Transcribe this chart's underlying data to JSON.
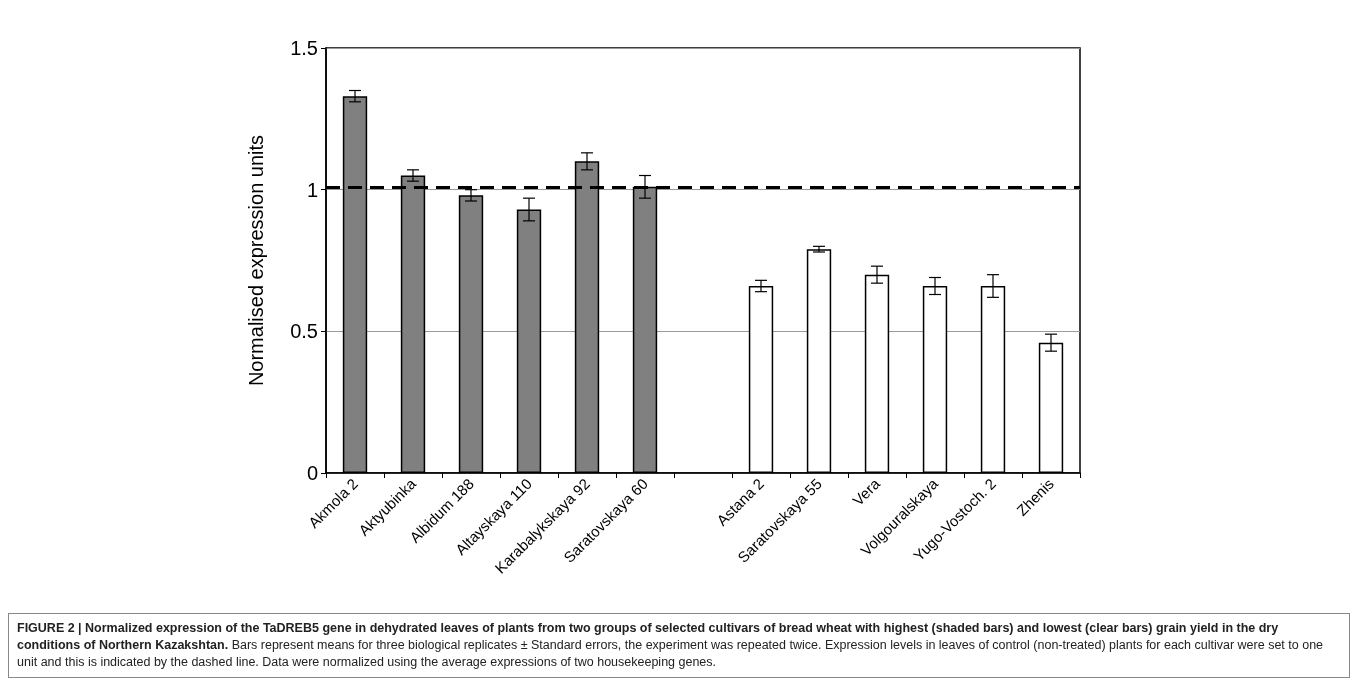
{
  "chart_data": {
    "type": "bar",
    "title": "FIGURE 2 | Normalized expression of the TaDREB5 gene in dehydrated leaves of plants from two groups of selected cultivars of bread wheat with highest (shaded bars) and lowest (clear bars) grain yield in the dry conditions of Northern Kazakshtan.",
    "annotations": [
      "Bars represent means for three biological replicates ± Standard errors, the experiment was repeated twice. Expression levels in leaves of control (non-treated) plants for each cultivar were set to one unit and this is indicated by the dashed line. Data were normalized using the average expressions of two housekeeping genes."
    ],
    "ylabel": "Normalised expression units",
    "categories": [
      "Akmola 2",
      "Aktyubinka",
      "Albidum 188",
      "Altayskaya 110",
      "Karabalykskaya 92",
      "Saratovskaya 60",
      null,
      "Astana 2",
      "Saratovskaya 55",
      "Vera",
      "Volgouralskaya",
      "Yugo-Vostoch. 2",
      "Zhenis"
    ],
    "values": [
      1.33,
      1.05,
      0.98,
      0.93,
      1.1,
      1.01,
      null,
      0.66,
      0.79,
      0.7,
      0.66,
      0.66,
      0.46
    ],
    "errors": [
      0.02,
      0.02,
      0.02,
      0.04,
      0.03,
      0.04,
      null,
      0.02,
      0.01,
      0.03,
      0.03,
      0.04,
      0.03
    ],
    "colors": [
      "#808080",
      "#808080",
      "#808080",
      "#808080",
      "#808080",
      "#808080",
      "#ffffff",
      "#ffffff",
      "#ffffff",
      "#ffffff",
      "#ffffff",
      "#ffffff",
      "#ffffff"
    ],
    "ylim": [
      0,
      1.5
    ],
    "yticks": [
      0,
      0.5,
      1,
      1.5
    ],
    "grid": "y",
    "ref_lines": [
      {
        "axis": "y",
        "value": 1.01,
        "line_style": "dashed",
        "color": "#000000"
      }
    ]
  }
}
